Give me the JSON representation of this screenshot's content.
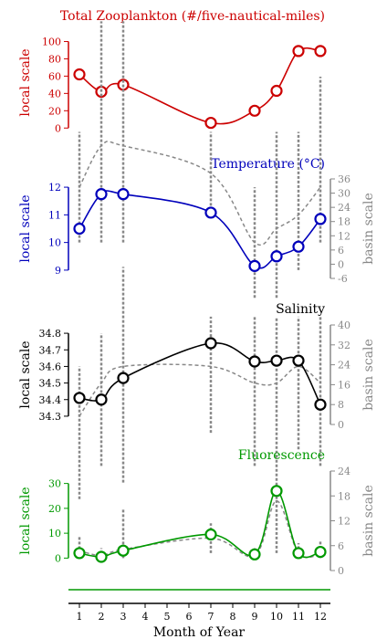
{
  "figure": {
    "xlabel": "Month of Year",
    "x_ticks": [
      1,
      2,
      3,
      4,
      5,
      6,
      7,
      8,
      9,
      10,
      11,
      12
    ]
  },
  "chart_data": [
    {
      "type": "line",
      "title": "Total Zooplankton (#/five-nautical-miles)",
      "ylabel": "local scale",
      "color": "#cc0000",
      "ylim": [
        -5,
        110
      ],
      "y_ticks": [
        0,
        20,
        40,
        60,
        80,
        100
      ],
      "series": [
        {
          "x": [
            1,
            2,
            3,
            7,
            9,
            10,
            11,
            12
          ],
          "values": [
            62,
            42,
            50,
            6,
            20,
            43,
            89,
            89
          ]
        }
      ]
    },
    {
      "type": "line",
      "title": "Temperature (°C)",
      "ylabel": "local scale",
      "right_ylabel": "basin scale",
      "color": "#0000bb",
      "ylim": [
        8.7,
        12.3
      ],
      "y_ticks": [
        9,
        10,
        11,
        12
      ],
      "right_ylim": [
        -6,
        36
      ],
      "right_ticks": [
        -6,
        0,
        6,
        12,
        18,
        24,
        30,
        36
      ],
      "series": [
        {
          "x": [
            1,
            2,
            3,
            7,
            9,
            10,
            11,
            12
          ],
          "values": [
            10.5,
            11.75,
            11.75,
            11.08,
            9.15,
            9.5,
            9.85,
            10.85
          ]
        }
      ],
      "basin_series": {
        "x": [
          1,
          2,
          3,
          7,
          9,
          10,
          11,
          12
        ],
        "values": [
          12,
          13.5,
          13.5,
          12.5,
          10,
          10.5,
          11,
          12
        ],
        "low": [
          10,
          10,
          10,
          11,
          8,
          8,
          9,
          10
        ],
        "high": [
          14,
          18,
          18,
          14,
          12,
          14,
          14,
          16
        ]
      }
    },
    {
      "type": "line",
      "title": "Salinity",
      "ylabel": "local scale",
      "right_ylabel": "basin scale",
      "color": "#000000",
      "ylim": [
        34.25,
        34.85
      ],
      "y_ticks": [
        34.3,
        34.4,
        34.5,
        34.6,
        34.7,
        34.8
      ],
      "right_ylim": [
        0,
        40
      ],
      "right_ticks": [
        0,
        8,
        16,
        24,
        32,
        40
      ],
      "series": [
        {
          "x": [
            1,
            2,
            3,
            7,
            9,
            10,
            11,
            12
          ],
          "values": [
            34.41,
            34.4,
            34.53,
            34.74,
            34.63,
            34.635,
            34.635,
            34.37
          ]
        }
      ],
      "basin_series": {
        "x": [
          1,
          2,
          3,
          7,
          9,
          10,
          11,
          12
        ],
        "values": [
          34.3,
          34.5,
          34.6,
          34.6,
          34.5,
          34.5,
          34.6,
          34.5
        ],
        "low": [
          33.8,
          34.0,
          33.9,
          34.2,
          34.0,
          33.8,
          34.1,
          34.0
        ],
        "high": [
          34.6,
          34.8,
          35.2,
          34.9,
          34.9,
          34.9,
          34.9,
          34.9
        ]
      }
    },
    {
      "type": "line",
      "title": "Fluorescence",
      "ylabel": "local scale",
      "right_ylabel": "basin scale",
      "color": "#009900",
      "ylim": [
        -5,
        35
      ],
      "y_ticks": [
        0,
        10,
        20,
        30
      ],
      "right_ylim": [
        0,
        24
      ],
      "right_ticks": [
        0,
        6,
        12,
        18,
        24
      ],
      "series": [
        {
          "x": [
            1,
            2,
            3,
            7,
            9,
            10,
            11,
            12
          ],
          "values": [
            2,
            0.5,
            3,
            9.5,
            1.5,
            27,
            2,
            2.5
          ]
        }
      ],
      "basin_series": {
        "x": [
          1,
          2,
          3,
          7,
          9,
          10,
          11,
          12
        ],
        "values": [
          3,
          1,
          3.5,
          8,
          1,
          23,
          2,
          1.5
        ],
        "low": [
          0,
          0,
          0,
          2,
          0,
          2,
          0,
          0
        ],
        "high": [
          9,
          4,
          20,
          14,
          4,
          24,
          6,
          7
        ]
      }
    }
  ]
}
